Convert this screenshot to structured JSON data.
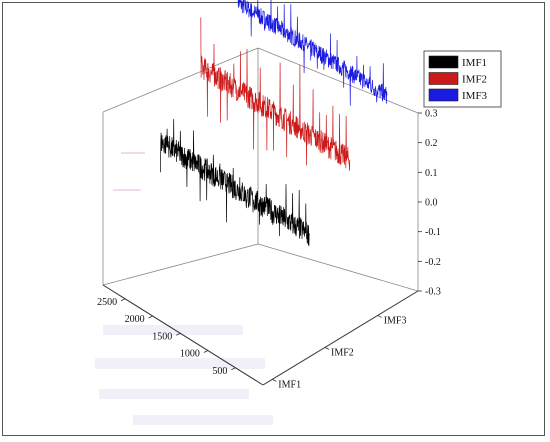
{
  "chart_data": {
    "type": "line",
    "title": "",
    "subtitle": "",
    "xlabel": "",
    "ylabel": "",
    "zlabel": "",
    "projection": "3d",
    "x_axis": {
      "ticks": [
        500,
        1000,
        1500,
        2000,
        2500
      ],
      "range": [
        0,
        2900
      ]
    },
    "y_axis": {
      "categories": [
        "IMF1",
        "IMF2",
        "IMF3"
      ]
    },
    "z_axis": {
      "ticks": [
        "-0.3",
        "-0.2",
        "-0.1",
        "0.0",
        "0.1",
        "0.2",
        "0.3"
      ],
      "range": [
        -0.3,
        0.3
      ]
    },
    "grid": false,
    "legend": {
      "position": "top-right",
      "entries": [
        "IMF1",
        "IMF2",
        "IMF3"
      ]
    },
    "series": [
      {
        "name": "IMF1",
        "color": "#000000",
        "amplitude": 0.04,
        "spike_amplitude": 0.1,
        "n_points": 2900
      },
      {
        "name": "IMF2",
        "color": "#cc1a1a",
        "amplitude": 0.04,
        "spike_amplitude": 0.18,
        "n_points": 2900
      },
      {
        "name": "IMF3",
        "color": "#1a1ae0",
        "amplitude": 0.03,
        "spike_amplitude": 0.09,
        "n_points": 2900
      }
    ]
  }
}
